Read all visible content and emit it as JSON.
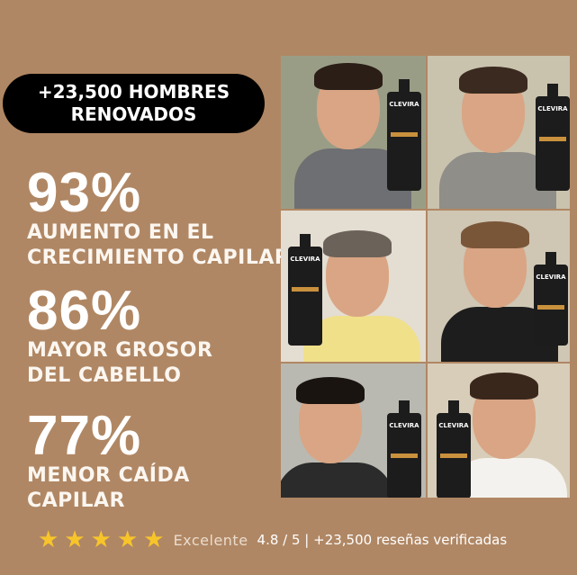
{
  "badge": {
    "line1": "+23,500 HOMBRES",
    "line2": "RENOVADOS"
  },
  "stats": [
    {
      "value": "93%",
      "line1": "AUMENTO EN EL",
      "line2": "CRECIMIENTO CAPILAR"
    },
    {
      "value": "86%",
      "line1": "MAYOR GROSOR",
      "line2": "DEL CABELLO"
    },
    {
      "value": "77%",
      "line1": "MENOR CAÍDA",
      "line2": "CAPILAR"
    }
  ],
  "product": {
    "brand": "CLEVIRA"
  },
  "photos": [
    {
      "bg": "#9a9d86",
      "shirt": "#6d6f72",
      "hair": "#2a1e17"
    },
    {
      "bg": "#c9c2ad",
      "shirt": "#8f8e88",
      "hair": "#3b2a1f"
    },
    {
      "bg": "#e4ddd1",
      "shirt": "#f0e08a",
      "hair": "#6b6259"
    },
    {
      "bg": "#cfc6b4",
      "shirt": "#1d1d1d",
      "hair": "#7a5638"
    },
    {
      "bg": "#b9b9b1",
      "shirt": "#2b2b2b",
      "hair": "#1a1411"
    },
    {
      "bg": "#d8cdb8",
      "shirt": "#f4f2ee",
      "hair": "#3a271c"
    }
  ],
  "rating": {
    "stars": 5,
    "label": "Excelente",
    "summary": "4.8 / 5 | +23,500 reseñas verificadas",
    "star_color": "#f7c52a"
  },
  "colors": {
    "background": "#b08764",
    "badge": "#000000"
  }
}
